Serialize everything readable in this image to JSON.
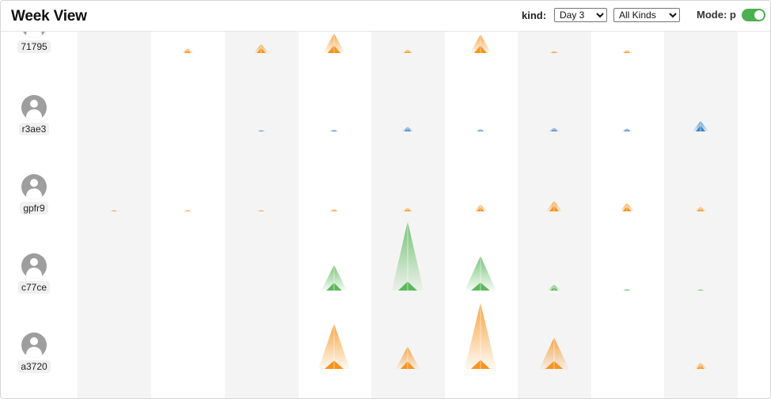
{
  "header": {
    "title": "Week View",
    "kind_label": "kind:",
    "day_select": {
      "value": "Day 3",
      "options": [
        "Day 3"
      ]
    },
    "kinds_select": {
      "value": "All Kinds",
      "options": [
        "All Kinds"
      ]
    },
    "mode_label": "Mode: p",
    "mode_on": true
  },
  "colors": {
    "orange": "#f7931e",
    "blue": "#3d85c6",
    "green": "#5cb85c",
    "toggle": "#4caf50",
    "column_shade": "#f4f4f4"
  },
  "icons": {
    "avatar": "user-avatar-icon"
  },
  "chart_data": {
    "type": "glyph-grid",
    "columns": 9,
    "rows": [
      {
        "user": "71795",
        "color": "orange",
        "peaks": [
          0,
          0.15,
          0.3,
          0.65,
          0.12,
          0.62,
          0.07,
          0.1,
          0
        ]
      },
      {
        "user": "r3ae3",
        "color": "blue",
        "peaks": [
          0,
          0,
          0.03,
          0.06,
          0.15,
          0.08,
          0.12,
          0.1,
          0.35
        ]
      },
      {
        "user": "gpfr9",
        "color": "orange",
        "peaks": [
          0.02,
          0.04,
          0.03,
          0.08,
          0.12,
          0.22,
          0.35,
          0.28,
          0.15
        ]
      },
      {
        "user": "c77ce",
        "color": "green",
        "peaks": [
          0,
          0,
          0,
          0.85,
          2.3,
          1.15,
          0.2,
          0.05,
          0.03
        ]
      },
      {
        "user": "a3720",
        "color": "orange",
        "peaks": [
          0,
          0,
          0,
          1.5,
          0.75,
          2.2,
          1.05,
          0,
          0.2
        ]
      }
    ]
  }
}
